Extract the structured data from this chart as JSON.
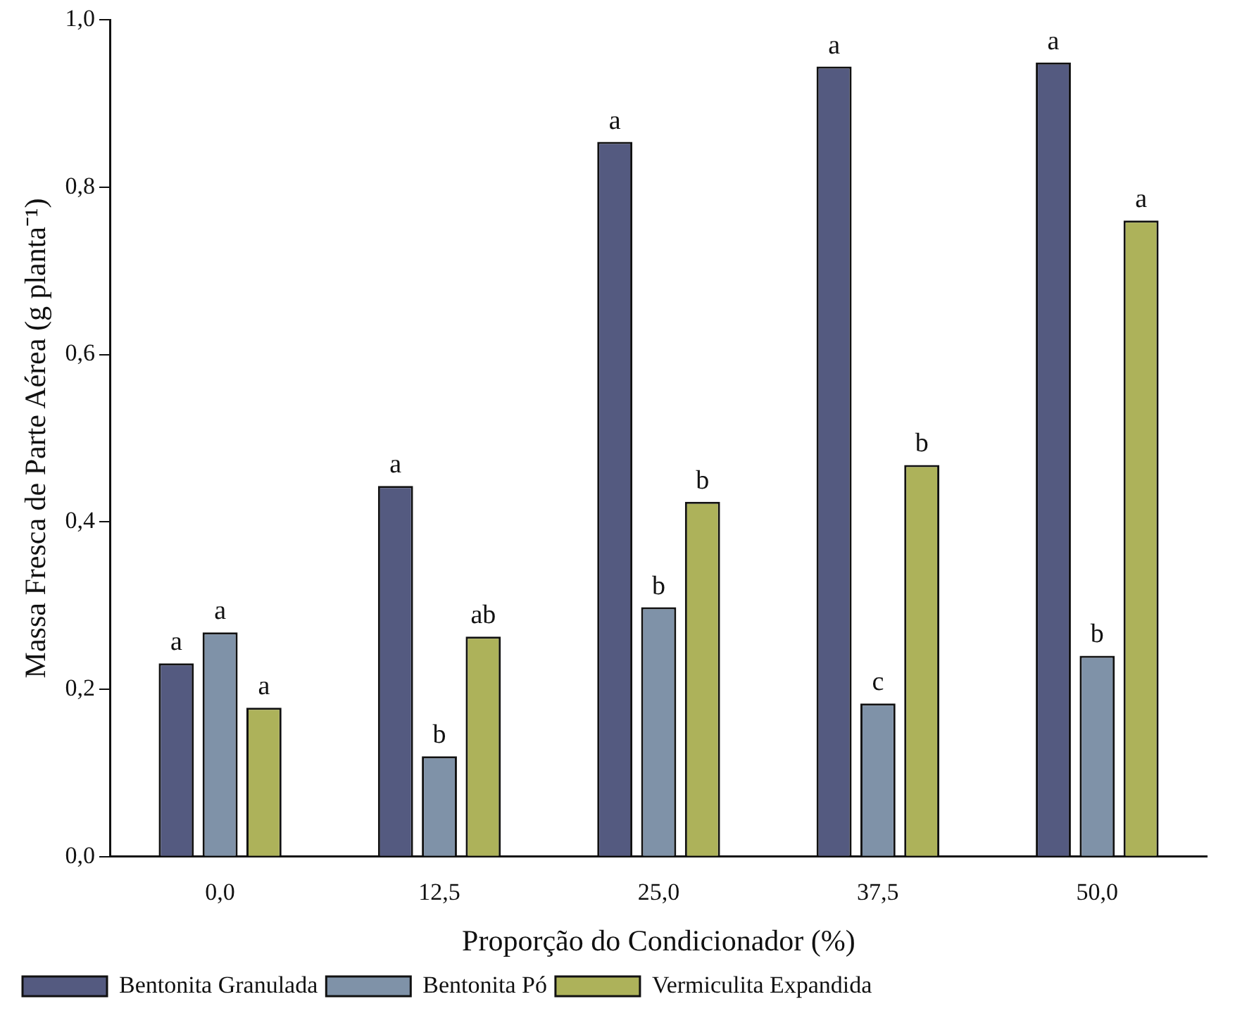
{
  "chart_data": {
    "type": "bar",
    "xlabel": "Proporção do Condicionador (%)",
    "ylabel": "Massa Fresca de Parte Aérea (g planta⁻¹)",
    "categories": [
      "0,0",
      "12,5",
      "25,0",
      "37,5",
      "50,0"
    ],
    "series": [
      {
        "name": "Bentonita Granulada",
        "color": "#545a80",
        "values": [
          0.231,
          0.443,
          0.854,
          0.944,
          0.949
        ],
        "value_labels": [
          "a",
          "a",
          "a",
          "a",
          "a"
        ]
      },
      {
        "name": "Bentonita Pó",
        "color": "#7f92a8",
        "values": [
          0.268,
          0.12,
          0.298,
          0.183,
          0.24
        ],
        "value_labels": [
          "a",
          "b",
          "b",
          "c",
          "b"
        ]
      },
      {
        "name": "Vermiculita Expandida",
        "color": "#adb25a",
        "values": [
          0.178,
          0.263,
          0.424,
          0.468,
          0.76
        ],
        "value_labels": [
          "a",
          "ab",
          "b",
          "b",
          "a"
        ]
      }
    ],
    "ylim": [
      0,
      1
    ],
    "yticks": [
      {
        "value": 0,
        "label": "0,0"
      },
      {
        "value": 0.2,
        "label": "0,2"
      },
      {
        "value": 0.4,
        "label": "0,4"
      },
      {
        "value": 0.6,
        "label": "0,6"
      },
      {
        "value": 0.8,
        "label": "0,8"
      },
      {
        "value": 1,
        "label": "1,0"
      }
    ],
    "grid": false,
    "legend": "bottom left"
  }
}
